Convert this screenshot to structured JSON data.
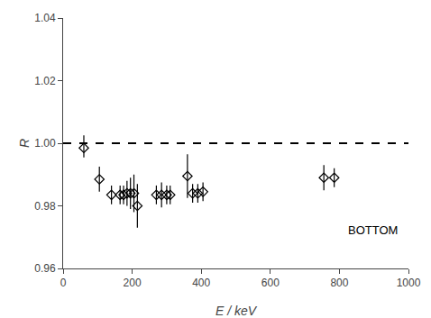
{
  "chart_data": {
    "type": "scatter",
    "xlabel": "E / keV",
    "ylabel": "R",
    "x": [
      60,
      105,
      140,
      165,
      175,
      185,
      195,
      205,
      215,
      270,
      285,
      300,
      310,
      360,
      375,
      390,
      405,
      755,
      785
    ],
    "series": [
      {
        "color": "black",
        "marker": "diamond-open",
        "values": [
          0.9985,
          0.9885,
          0.9835,
          0.9835,
          0.9835,
          0.984,
          0.984,
          0.984,
          0.98,
          0.9835,
          0.9835,
          0.9835,
          0.9835,
          0.9895,
          0.984,
          0.984,
          0.9845,
          0.989,
          0.989
        ],
        "yerr_lo": [
          0.003,
          0.004,
          0.003,
          0.003,
          0.003,
          0.004,
          0.005,
          0.006,
          0.007,
          0.003,
          0.004,
          0.003,
          0.003,
          0.007,
          0.003,
          0.003,
          0.003,
          0.004,
          0.003
        ],
        "yerr_hi": [
          0.004,
          0.004,
          0.003,
          0.003,
          0.003,
          0.004,
          0.005,
          0.006,
          0.007,
          0.003,
          0.004,
          0.003,
          0.003,
          0.007,
          0.003,
          0.003,
          0.003,
          0.004,
          0.003
        ]
      }
    ],
    "hline": {
      "y": 1.0,
      "line_style": "dashed",
      "color": "black"
    },
    "annotations": [
      {
        "text": "BOTTOM",
        "x": 820,
        "y": 0.975
      }
    ],
    "xlim": [
      0,
      1000
    ],
    "ylim": [
      0.96,
      1.04
    ],
    "xticks": [
      0,
      200,
      400,
      600,
      800,
      1000
    ],
    "yticks": [
      0.96,
      0.98,
      {
        "value": 1.0,
        "label": "1.00"
      },
      1.02,
      1.04
    ],
    "grid": false,
    "background_color": "#ffffff"
  }
}
